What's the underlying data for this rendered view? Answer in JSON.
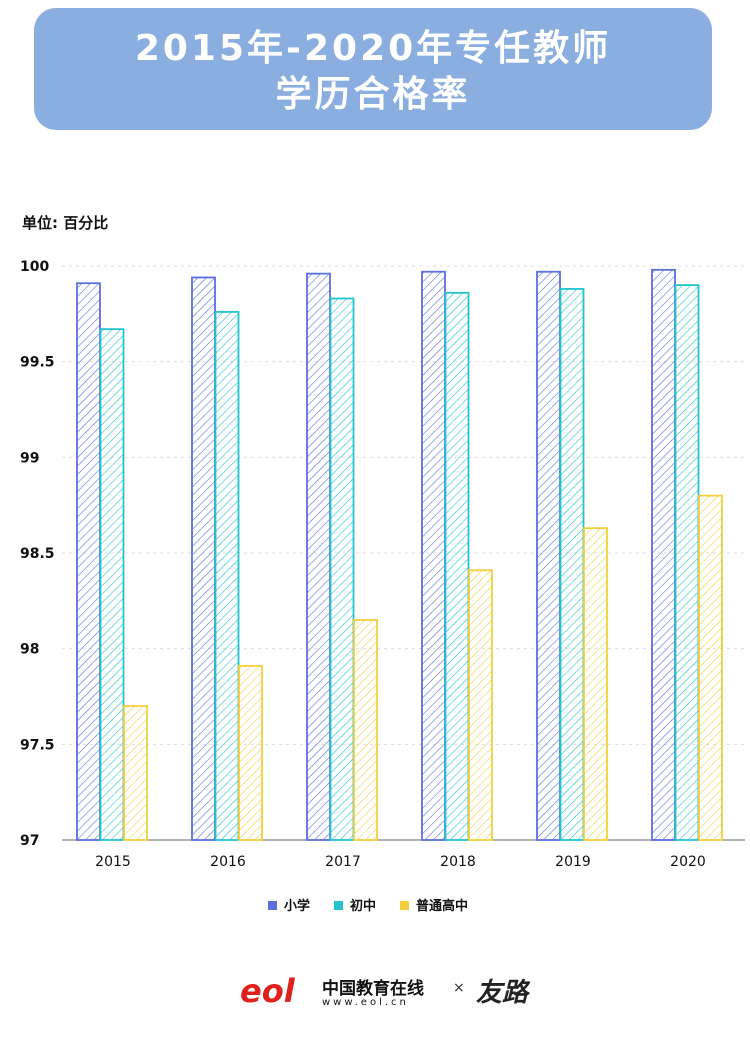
{
  "header": {
    "title_line1": "2015年-2020年专任教师",
    "title_line2": "学历合格率"
  },
  "footer": {
    "logo": "eol",
    "brand": "中国教育在线",
    "url": "www.eol.cn",
    "times": "×",
    "partner": "友路"
  },
  "chart_data": {
    "type": "bar",
    "title": "2015年-2020年专任教师学历合格率",
    "ylabel": "单位: 百分比",
    "xlabel": "",
    "ylim": [
      97,
      100
    ],
    "yticks": [
      "97",
      "97.5",
      "98",
      "98.5",
      "99",
      "99.5",
      "100"
    ],
    "grid": true,
    "legend_position": "bottom",
    "categories": [
      "2015",
      "2016",
      "2017",
      "2018",
      "2019",
      "2020"
    ],
    "series": [
      {
        "name": "小学",
        "color": "#5b6fe0",
        "values": [
          99.91,
          99.94,
          99.96,
          99.97,
          99.97,
          99.98
        ]
      },
      {
        "name": "初中",
        "color": "#22c3cf",
        "values": [
          99.67,
          99.76,
          99.83,
          99.86,
          99.88,
          99.9
        ]
      },
      {
        "name": "普通高中",
        "color": "#f3cf3e",
        "values": [
          97.7,
          97.91,
          98.15,
          98.41,
          98.63,
          98.8
        ]
      }
    ]
  }
}
